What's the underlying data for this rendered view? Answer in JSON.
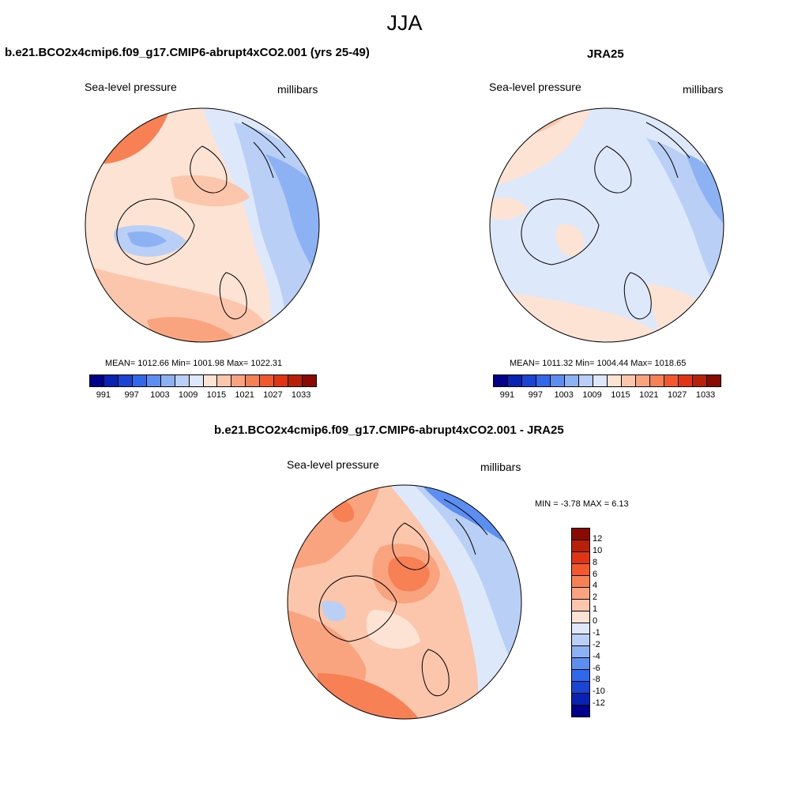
{
  "main_title": "JJA",
  "panels": [
    {
      "title": "b.e21.BCO2x4cmip6.f09_g17.CMIP6-abrupt4xCO2.001 (yrs 25-49)",
      "left_label": "Sea-level pressure",
      "right_label": "millibars",
      "stats": "MEAN= 1012.66  Min= 1001.98  Max= 1022.31"
    },
    {
      "title": "JRA25",
      "left_label": "Sea-level pressure",
      "right_label": "millibars",
      "stats": "MEAN= 1011.32  Min= 1004.44  Max= 1018.65"
    },
    {
      "title": "b.e21.BCO2x4cmip6.f09_g17.CMIP6-abrupt4xCO2.001 - JRA25",
      "left_label": "Sea-level pressure",
      "right_label": "millibars",
      "stats": "MIN =  -3.78 MAX =   6.13"
    }
  ],
  "abs_colorbar": {
    "colors": [
      "#00008b",
      "#0a22b4",
      "#1a44d4",
      "#2f68ea",
      "#5b8ef0",
      "#8db2f4",
      "#b9cff6",
      "#dde9fb",
      "#fde3d4",
      "#fbc6ab",
      "#f9a37f",
      "#f78055",
      "#f3582c",
      "#e13414",
      "#b8200a",
      "#8b0a00"
    ],
    "tick_labels": [
      "991",
      "997",
      "1003",
      "1009",
      "1015",
      "1021",
      "1027",
      "1033"
    ]
  },
  "diff_colorbar": {
    "colors": [
      "#8b0a00",
      "#b8200a",
      "#e13414",
      "#f3582c",
      "#f78055",
      "#f9a37f",
      "#fbc6ab",
      "#fde3d4",
      "#dde9fb",
      "#b9cff6",
      "#8db2f4",
      "#5b8ef0",
      "#2f68ea",
      "#1a44d4",
      "#0a22b4",
      "#00008b"
    ],
    "tick_labels": [
      "12",
      "10",
      "8",
      "6",
      "4",
      "2",
      "1",
      "0",
      "-1",
      "-2",
      "-4",
      "-6",
      "-8",
      "-10",
      "-12"
    ]
  },
  "map_colors": {
    "light_red": "#fde3d4",
    "salmon": "#fbc6ab",
    "orange_red": "#f78055",
    "mid_orange": "#f9a37f",
    "pale_blue": "#dde9fb",
    "light_blue": "#b9cff6",
    "mid_blue": "#8db2f4",
    "blue": "#5b8ef0"
  }
}
